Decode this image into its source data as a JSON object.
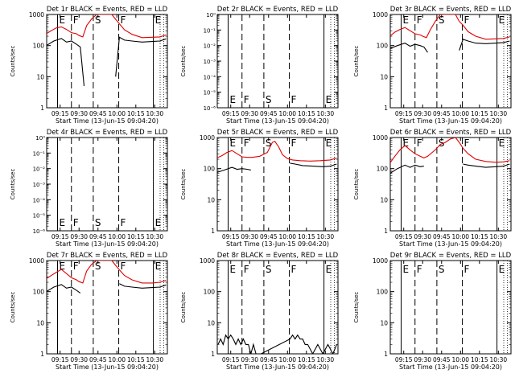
{
  "colors": {
    "events": "#000000",
    "lld": "#e00000",
    "frame": "#000000",
    "background": "#ffffff"
  },
  "chart_data": [
    {
      "type": "line",
      "title": "Det 1r BLACK = Events, RED = LLD",
      "xlabel": "Start Time (13-Jun-15 09:04:20)",
      "ylabel": "Counts/sec",
      "y_scale": "log",
      "ylim": [
        1,
        1000
      ],
      "ytick_labels": [
        "1",
        "10",
        "100",
        "1000"
      ],
      "xtick_labels": [
        "09:15",
        "09:30",
        "09:45",
        "10:00",
        "10:15",
        "10:30"
      ],
      "xlim": [
        "09:04:20",
        "10:40"
      ],
      "markers": [
        "E",
        "F",
        "S",
        "F",
        "E"
      ],
      "series": [
        {
          "name": "Events",
          "x": [
            "09:04",
            "09:10",
            "09:16",
            "09:20",
            "09:24",
            "09:28",
            "09:31",
            "09:34",
            "09:40",
            "09:48",
            "09:55",
            "09:59",
            "10:02",
            "10:06",
            "10:12",
            "10:20",
            "10:28",
            "10:34",
            "10:39"
          ],
          "values": [
            100,
            140,
            170,
            130,
            140,
            110,
            90,
            5,
            null,
            null,
            null,
            10,
            185,
            150,
            140,
            130,
            135,
            140,
            165
          ]
        },
        {
          "name": "LLD",
          "x": [
            "09:04",
            "09:08",
            "09:12",
            "09:16",
            "09:20",
            "09:24",
            "09:28",
            "09:30",
            "09:33",
            "09:36",
            "09:40",
            "09:44",
            "09:48",
            "09:52",
            "09:56",
            "09:59",
            "10:02",
            "10:06",
            "10:12",
            "10:20",
            "10:28",
            "10:34",
            "10:39"
          ],
          "values": [
            240,
            300,
            370,
            400,
            330,
            260,
            240,
            210,
            190,
            440,
            720,
            1000,
            1000,
            1000,
            1000,
            700,
            500,
            320,
            230,
            180,
            185,
            190,
            220
          ]
        }
      ]
    },
    {
      "type": "line",
      "title": "Det 2r BLACK = Events, RED = LLD",
      "xlabel": "Start Time (13-Jun-15 09:04:20)",
      "ylabel": "Counts/sec",
      "y_scale": "log",
      "ylim": [
        1.0,
        1e-06
      ],
      "ytick_labels": [
        "10⁻⁶",
        "10⁻⁵",
        "10⁻⁴",
        "10⁻³",
        "10⁻²",
        "10⁻¹",
        "10⁰"
      ],
      "xtick_labels": [
        "09:15",
        "09:30",
        "09:45",
        "10:00",
        "10:15",
        "10:30"
      ],
      "xlim": [
        "09:04:20",
        "10:40"
      ],
      "markers": [
        "E",
        "F",
        "S",
        "F",
        "E"
      ],
      "series": []
    },
    {
      "type": "line",
      "title": "Det 3r BLACK = Events, RED = LLD",
      "xlabel": "Start Time (13-Jun-15 09:04:20)",
      "ylabel": "Counts/sec",
      "y_scale": "log",
      "ylim": [
        1,
        1000
      ],
      "ytick_labels": [
        "1",
        "10",
        "100",
        "1000"
      ],
      "xtick_labels": [
        "09:15",
        "09:30",
        "09:45",
        "10:00",
        "10:15",
        "10:30"
      ],
      "xlim": [
        "09:04:20",
        "10:40"
      ],
      "markers": [
        "E",
        "F",
        "S",
        "F",
        "E"
      ],
      "series": [
        {
          "name": "Events",
          "x": [
            "09:04",
            "09:10",
            "09:16",
            "09:20",
            "09:24",
            "09:28",
            "09:31",
            "09:34",
            "09:40",
            "09:48",
            "09:55",
            "09:59",
            "10:02",
            "10:06",
            "10:12",
            "10:20",
            "10:28",
            "10:34",
            "10:39"
          ],
          "values": [
            80,
            100,
            120,
            95,
            110,
            100,
            90,
            60,
            null,
            null,
            null,
            70,
            160,
            140,
            120,
            115,
            120,
            125,
            140
          ]
        },
        {
          "name": "LLD",
          "x": [
            "09:04",
            "09:08",
            "09:12",
            "09:16",
            "09:20",
            "09:24",
            "09:28",
            "09:30",
            "09:33",
            "09:36",
            "09:40",
            "09:44",
            "09:48",
            "09:52",
            "09:56",
            "09:59",
            "10:02",
            "10:06",
            "10:12",
            "10:20",
            "10:28",
            "10:34",
            "10:39"
          ],
          "values": [
            200,
            270,
            330,
            380,
            300,
            240,
            220,
            200,
            180,
            320,
            600,
            1000,
            1000,
            1000,
            1000,
            600,
            450,
            280,
            200,
            160,
            165,
            170,
            190
          ]
        }
      ]
    },
    {
      "type": "line",
      "title": "Det 4r BLACK = Events, RED = LLD",
      "xlabel": "Start Time (13-Jun-15 09:04:20)",
      "ylabel": "Counts/sec",
      "y_scale": "log",
      "ylim": [
        1.0,
        1e-06
      ],
      "ytick_labels": [
        "10⁻⁶",
        "10⁻⁵",
        "10⁻⁴",
        "10⁻³",
        "10⁻²",
        "10⁻¹",
        "10⁰"
      ],
      "xtick_labels": [
        "09:15",
        "09:30",
        "09:45",
        "10:00",
        "10:15",
        "10:30"
      ],
      "xlim": [
        "09:04:20",
        "10:40"
      ],
      "markers": [
        "E",
        "F",
        "S",
        "F",
        "E"
      ],
      "series": []
    },
    {
      "type": "line",
      "title": "Det 5r BLACK = Events, RED = LLD",
      "xlabel": "Start Time (13-Jun-15 09:04:20)",
      "ylabel": "Counts/sec",
      "y_scale": "log",
      "ylim": [
        1,
        1000
      ],
      "ytick_labels": [
        "1",
        "10",
        "100",
        "1000"
      ],
      "xtick_labels": [
        "09:15",
        "09:30",
        "09:45",
        "10:00",
        "10:15",
        "10:30"
      ],
      "xlim": [
        "09:04:20",
        "10:40"
      ],
      "markers": [
        "E",
        "F",
        "S",
        "F",
        "E"
      ],
      "series": [
        {
          "name": "Events",
          "x": [
            "09:04",
            "09:10",
            "09:16",
            "09:20",
            "09:24",
            "09:28",
            "09:31",
            "09:34",
            "09:40",
            "09:48",
            "09:55",
            "09:59",
            "10:02",
            "10:06",
            "10:12",
            "10:20",
            "10:28",
            "10:34",
            "10:39"
          ],
          "values": [
            75,
            90,
            110,
            95,
            100,
            95,
            90,
            null,
            null,
            null,
            null,
            null,
            150,
            140,
            125,
            120,
            115,
            120,
            140
          ]
        },
        {
          "name": "LLD",
          "x": [
            "09:04",
            "09:08",
            "09:12",
            "09:16",
            "09:20",
            "09:24",
            "09:28",
            "09:32",
            "09:38",
            "09:44",
            "09:48",
            "09:50",
            "09:53",
            "09:56",
            "10:00",
            "10:04",
            "10:10",
            "10:18",
            "10:26",
            "10:34",
            "10:39"
          ],
          "values": [
            220,
            260,
            330,
            380,
            300,
            240,
            230,
            230,
            250,
            330,
            700,
            750,
            500,
            280,
            210,
            190,
            180,
            175,
            180,
            190,
            220
          ]
        }
      ]
    },
    {
      "type": "line",
      "title": "Det 6r BLACK = Events, RED = LLD",
      "xlabel": "Start Time (13-Jun-15 09:04:20)",
      "ylabel": "Counts/sec",
      "y_scale": "log",
      "ylim": [
        1,
        1000
      ],
      "ytick_labels": [
        "1",
        "10",
        "100",
        "1000"
      ],
      "xtick_labels": [
        "09:15",
        "09:30",
        "09:45",
        "10:00",
        "10:15",
        "10:30"
      ],
      "xlim": [
        "09:04:20",
        "10:40"
      ],
      "markers": [
        "E",
        "F",
        "S",
        "F",
        "E"
      ],
      "series": [
        {
          "name": "Events",
          "x": [
            "09:04",
            "09:10",
            "09:16",
            "09:20",
            "09:24",
            "09:28",
            "09:31",
            "09:34",
            "09:40",
            "09:48",
            "09:55",
            "09:59",
            "10:02",
            "10:06",
            "10:12",
            "10:20",
            "10:28",
            "10:34",
            "10:39"
          ],
          "values": [
            70,
            100,
            130,
            110,
            130,
            115,
            120,
            null,
            null,
            null,
            null,
            null,
            140,
            130,
            120,
            110,
            115,
            120,
            140
          ]
        },
        {
          "name": "LLD",
          "x": [
            "09:04",
            "09:08",
            "09:12",
            "09:16",
            "09:20",
            "09:24",
            "09:28",
            "09:31",
            "09:34",
            "09:40",
            "09:44",
            "09:48",
            "09:52",
            "09:56",
            "09:59",
            "10:02",
            "10:06",
            "10:12",
            "10:20",
            "10:28",
            "10:34",
            "10:39"
          ],
          "values": [
            150,
            250,
            400,
            550,
            400,
            300,
            250,
            220,
            250,
            400,
            600,
            700,
            900,
            1000,
            700,
            450,
            300,
            200,
            170,
            160,
            165,
            180
          ]
        }
      ]
    },
    {
      "type": "line",
      "title": "Det 7r BLACK = Events, RED = LLD",
      "xlabel": "Start Time (13-Jun-15 09:04:20)",
      "ylabel": "Counts/sec",
      "y_scale": "log",
      "ylim": [
        1,
        1000
      ],
      "ytick_labels": [
        "1",
        "10",
        "100",
        "1000"
      ],
      "xtick_labels": [
        "09:15",
        "09:30",
        "09:45",
        "10:00",
        "10:15",
        "10:30"
      ],
      "xlim": [
        "09:04:20",
        "10:40"
      ],
      "markers": [
        "E",
        "F",
        "S",
        "F",
        "E"
      ],
      "series": [
        {
          "name": "Events",
          "x": [
            "09:04",
            "09:10",
            "09:16",
            "09:20",
            "09:24",
            "09:28",
            "09:31",
            "09:34",
            "09:40",
            "09:48",
            "09:55",
            "09:59",
            "10:02",
            "10:06",
            "10:12",
            "10:20",
            "10:28",
            "10:34",
            "10:39"
          ],
          "values": [
            100,
            140,
            170,
            130,
            140,
            110,
            90,
            null,
            null,
            null,
            null,
            null,
            180,
            150,
            140,
            130,
            135,
            140,
            165
          ]
        },
        {
          "name": "LLD",
          "x": [
            "09:04",
            "09:08",
            "09:12",
            "09:16",
            "09:20",
            "09:24",
            "09:28",
            "09:30",
            "09:33",
            "09:36",
            "09:40",
            "09:44",
            "09:48",
            "09:52",
            "09:56",
            "09:59",
            "10:02",
            "10:06",
            "10:12",
            "10:20",
            "10:28",
            "10:34",
            "10:39"
          ],
          "values": [
            260,
            330,
            420,
            520,
            380,
            280,
            240,
            210,
            190,
            460,
            760,
            1000,
            1000,
            1000,
            1000,
            700,
            500,
            330,
            240,
            190,
            190,
            200,
            230
          ]
        }
      ]
    },
    {
      "type": "line",
      "title": "Det 8r BLACK = Events, RED = LLD",
      "xlabel": "Start Time (13-Jun-15 09:04:20)",
      "ylabel": "Counts/sec",
      "y_scale": "log",
      "ylim": [
        1,
        1000
      ],
      "ytick_labels": [
        "1",
        "10",
        "100",
        "1000"
      ],
      "xtick_labels": [
        "09:15",
        "09:30",
        "09:45",
        "10:00",
        "10:15",
        "10:30"
      ],
      "xlim": [
        "09:04:20",
        "10:40"
      ],
      "markers": [
        "E",
        "F",
        "S",
        "F",
        "E"
      ],
      "series": [
        {
          "name": "Events",
          "x": [
            "09:05",
            "09:07",
            "09:09",
            "09:11",
            "09:13",
            "09:15",
            "09:17",
            "09:19",
            "09:21",
            "09:23",
            "09:25",
            "09:27",
            "09:29",
            "09:31",
            "09:33",
            "09:35",
            "09:37",
            "09:39",
            "10:02",
            "10:04",
            "10:06",
            "10:08",
            "10:10",
            "10:12",
            "10:14",
            "10:16",
            "10:20",
            "10:24",
            "10:28",
            "10:32",
            "10:36",
            "10:39"
          ],
          "values": [
            2,
            3,
            2,
            4,
            3,
            4,
            3,
            2,
            3,
            2,
            3,
            2,
            2,
            1,
            2,
            1,
            1,
            1,
            3,
            4,
            3,
            4,
            3,
            3,
            2,
            2,
            1,
            2,
            1,
            2,
            1,
            2
          ]
        }
      ]
    },
    {
      "type": "line",
      "title": "Det 9r BLACK = Events, RED = LLD",
      "xlabel": "Start Time (13-Jun-15 09:04:20)",
      "ylabel": "Counts/sec",
      "y_scale": "log",
      "ylim": [
        1,
        1000
      ],
      "ytick_labels": [
        "1",
        "10",
        "100",
        "1000"
      ],
      "xtick_labels": [
        "09:15",
        "09:30",
        "09:45",
        "10:00",
        "10:15",
        "10:30"
      ],
      "xlim": [
        "09:04:20",
        "10:40"
      ],
      "markers": [
        "E",
        "F",
        "S",
        "F",
        "E"
      ],
      "series": []
    }
  ]
}
